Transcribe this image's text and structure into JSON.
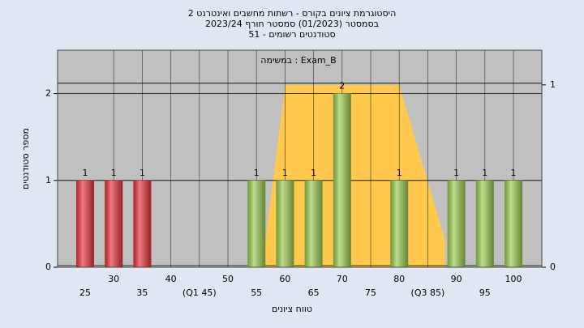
{
  "chart_data": {
    "type": "bar",
    "title": [
      "היסטוגרמת ציונים בקורס - רשתות מחשבים ואינטרנט 2",
      "בסמסטר  (01/2023)  סמסטר חורף 2023/24",
      "סטודנטים רשומים - 51"
    ],
    "subtitle": "במשימה : Exam_B",
    "x_label": "טווח ציונים",
    "y_label": "מספר סטודנטים",
    "categories": [
      "25",
      "30",
      "35",
      "40",
      "(Q1 45)",
      "50",
      "55",
      "60",
      "65",
      "70",
      "75",
      "80",
      "(Q3 85)",
      "90",
      "95",
      "100"
    ],
    "values": [
      1,
      1,
      1,
      0,
      0,
      0,
      1,
      1,
      1,
      2,
      0,
      1,
      0,
      1,
      1,
      1
    ],
    "colors": [
      "#e8323c",
      "#e8323c",
      "#e8323c",
      "#9ccc50",
      "#9ccc50",
      "#9ccc50",
      "#9ccc50",
      "#9ccc50",
      "#9ccc50",
      "#9ccc50",
      "#9ccc50",
      "#9ccc50",
      "#9ccc50",
      "#9ccc50",
      "#9ccc50",
      "#9ccc50"
    ],
    "ylim": [
      0,
      2.5
    ],
    "yticks": [
      0,
      1,
      2
    ],
    "y2lim": [
      0,
      1.19
    ],
    "y2ticks": [
      0,
      1
    ],
    "overlay": {
      "axis": "y2",
      "color": "#ffc94d",
      "x": [
        56,
        60,
        80,
        88,
        88
      ],
      "values": [
        0,
        1,
        1,
        0.15,
        0
      ]
    },
    "grid": true
  }
}
